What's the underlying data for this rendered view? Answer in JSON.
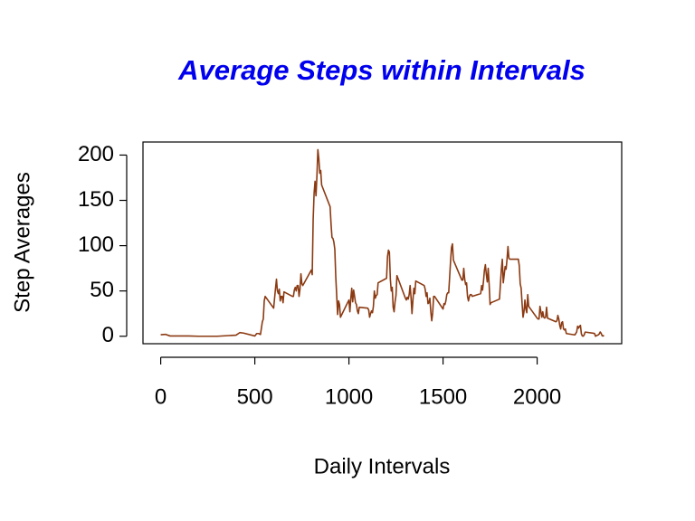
{
  "chart_data": {
    "type": "line",
    "title": "Average Steps within Intervals",
    "xlabel": "Daily Intervals",
    "ylabel": "Step Averages",
    "xlim": [
      -94.2,
      2449.2
    ],
    "ylim": [
      -8.247,
      214.42
    ],
    "xticks": [
      0,
      500,
      1000,
      1500,
      2000
    ],
    "yticks": [
      0,
      50,
      100,
      150,
      200
    ],
    "x": [
      0,
      25,
      50,
      100,
      150,
      200,
      300,
      400,
      420,
      440,
      500,
      505,
      510,
      520,
      530,
      540,
      545,
      550,
      555,
      600,
      610,
      615,
      620,
      625,
      630,
      635,
      640,
      645,
      650,
      655,
      700,
      705,
      710,
      715,
      720,
      725,
      730,
      735,
      740,
      745,
      750,
      755,
      800,
      805,
      810,
      815,
      820,
      825,
      830,
      835,
      840,
      845,
      850,
      855,
      900,
      905,
      910,
      915,
      920,
      925,
      930,
      935,
      940,
      945,
      950,
      955,
      1000,
      1005,
      1010,
      1015,
      1020,
      1025,
      1030,
      1035,
      1040,
      1045,
      1050,
      1055,
      1100,
      1105,
      1110,
      1115,
      1120,
      1125,
      1130,
      1135,
      1140,
      1145,
      1150,
      1155,
      1200,
      1205,
      1210,
      1215,
      1220,
      1225,
      1230,
      1235,
      1240,
      1245,
      1250,
      1255,
      1300,
      1305,
      1310,
      1315,
      1320,
      1325,
      1330,
      1335,
      1340,
      1345,
      1350,
      1355,
      1400,
      1405,
      1410,
      1415,
      1420,
      1425,
      1430,
      1435,
      1440,
      1445,
      1450,
      1455,
      1500,
      1505,
      1510,
      1515,
      1520,
      1525,
      1530,
      1535,
      1540,
      1545,
      1550,
      1555,
      1600,
      1605,
      1610,
      1615,
      1620,
      1625,
      1630,
      1635,
      1640,
      1645,
      1650,
      1655,
      1700,
      1705,
      1710,
      1715,
      1720,
      1725,
      1730,
      1735,
      1740,
      1745,
      1750,
      1755,
      1800,
      1805,
      1810,
      1815,
      1820,
      1825,
      1830,
      1835,
      1840,
      1845,
      1850,
      1855,
      1900,
      1905,
      1910,
      1915,
      1920,
      1925,
      1930,
      1935,
      1940,
      1945,
      1950,
      1955,
      2000,
      2005,
      2010,
      2015,
      2020,
      2025,
      2030,
      2035,
      2040,
      2045,
      2050,
      2055,
      2100,
      2105,
      2110,
      2115,
      2120,
      2125,
      2130,
      2135,
      2140,
      2145,
      2150,
      2155,
      2200,
      2205,
      2210,
      2215,
      2220,
      2225,
      2230,
      2235,
      2240,
      2245,
      2250,
      2255,
      2300,
      2305,
      2310,
      2315,
      2320,
      2325,
      2330,
      2335,
      2340,
      2345,
      2350,
      2355
    ],
    "series": [
      {
        "color": "#8b3a12",
        "values": [
          1.7,
          2.1,
          0.3,
          0.3,
          0.3,
          0,
          0,
          1.2,
          4,
          3.5,
          0.3,
          1.6,
          3,
          3,
          2,
          16,
          19,
          39,
          44,
          31,
          53,
          63,
          50,
          47,
          52,
          39,
          44,
          44,
          37,
          49,
          44,
          44,
          51,
          54,
          50,
          56,
          56,
          44,
          52,
          69,
          58,
          56,
          73,
          68,
          129,
          158,
          171,
          155,
          177,
          206,
          196,
          180,
          183,
          167,
          143,
          124,
          109,
          108,
          104,
          96,
          66,
          45,
          24,
          39,
          35,
          21,
          40,
          27,
          42,
          53,
          38,
          51,
          44,
          37,
          35,
          28,
          25,
          32,
          31,
          29,
          21,
          25,
          28,
          26,
          33,
          50,
          42,
          45,
          46,
          59,
          64,
          88,
          95,
          93,
          63,
          50,
          54,
          32,
          27,
          38,
          45,
          67,
          42,
          40,
          43,
          41,
          46,
          56,
          43,
          25,
          40,
          53,
          47,
          61,
          56,
          52,
          44,
          48,
          36,
          37,
          42,
          27,
          17,
          26,
          44,
          44,
          30,
          36,
          35,
          39,
          46,
          48,
          48,
          65,
          83,
          98,
          102,
          84,
          62,
          62,
          75,
          63,
          57,
          59,
          44,
          39,
          44,
          46,
          46,
          44,
          47,
          56,
          51,
          61,
          73,
          79,
          68,
          60,
          75,
          57,
          35,
          37,
          41,
          58,
          74,
          85,
          59,
          68,
          77,
          74,
          85,
          99,
          86,
          85,
          85,
          78,
          58,
          53,
          36,
          21,
          27,
          40,
          30,
          26,
          46,
          33,
          20,
          19,
          19,
          33,
          27,
          21,
          27,
          21,
          20,
          21,
          32,
          20,
          16,
          17,
          23,
          19,
          12,
          8,
          15,
          16,
          8,
          7,
          8,
          3,
          1.5,
          3,
          4.8,
          11,
          9,
          11,
          12,
          2.6,
          0.3,
          0.1,
          1.6,
          4.6,
          3.3,
          3,
          0,
          0.8,
          1,
          1.6,
          2.6,
          4.7,
          3.3,
          0.6,
          0.2,
          1.1
        ]
      }
    ]
  }
}
